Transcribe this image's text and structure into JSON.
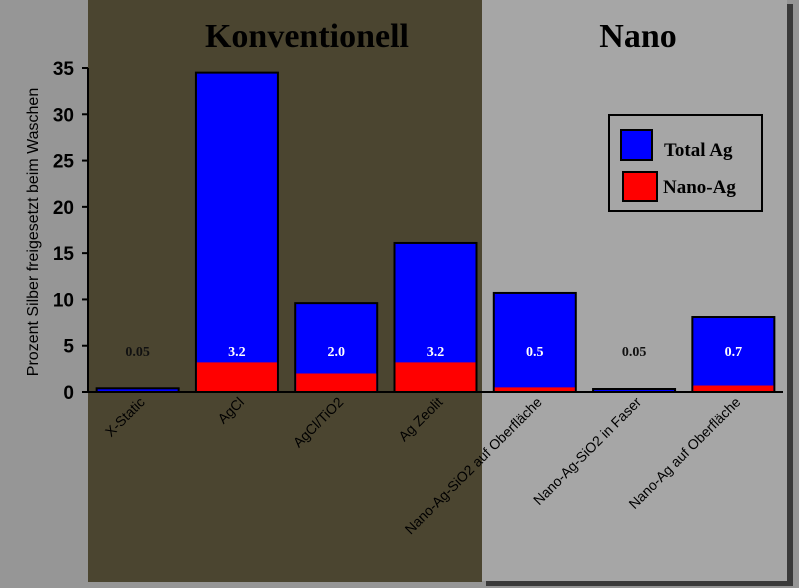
{
  "chart_data": {
    "type": "bar",
    "stacked": "overlay",
    "ylabel": "Prozent Silber freigesetzt beim Waschen",
    "ylim": [
      0,
      35
    ],
    "yticks": [
      0,
      5,
      10,
      15,
      20,
      25,
      30,
      35
    ],
    "grid": false,
    "legend_position": "top-right",
    "groups": [
      {
        "title": "Konventionell",
        "categories": [
          "X-Static",
          "AgCl",
          "AgCl/TiO2",
          "Ag Zeolit"
        ]
      },
      {
        "title": "Nano",
        "categories": [
          "Nano-Ag-SiO2 auf Oberfläche",
          "Nano-Ag-SiO2 in Faser",
          "Nano-Ag auf Oberfläche"
        ]
      }
    ],
    "categories": [
      "X-Static",
      "AgCl",
      "AgCl/TiO2",
      "Ag Zeolit",
      "Nano-Ag-SiO2 auf Oberfläche",
      "Nano-Ag-SiO2 in Faser",
      "Nano-Ag auf Oberfläche"
    ],
    "series": [
      {
        "name": "Total Ag",
        "color": "#0000ff",
        "values": [
          0.4,
          34.5,
          9.6,
          16.1,
          10.7,
          0.3,
          8.1
        ]
      },
      {
        "name": "Nano-Ag",
        "color": "#ff0000",
        "values": [
          0.05,
          3.2,
          2.0,
          3.2,
          0.5,
          0.05,
          0.7
        ]
      }
    ],
    "data_labels": [
      "0.05",
      "3.2",
      "2.0",
      "3.2",
      "0.5",
      "0.05",
      "0.7"
    ]
  },
  "colors": {
    "konventionell_bg": "#4b4530",
    "nano_bg": "#a6a6a6",
    "outer_bg": "#969696"
  }
}
